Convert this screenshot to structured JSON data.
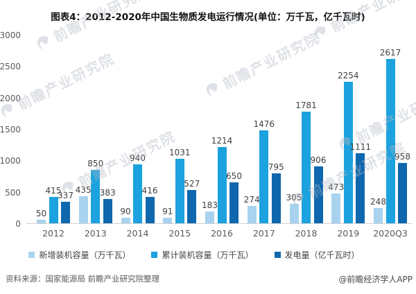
{
  "title": "图表4：2012-2020年中国生物质发电运行情况(单位：万千瓦，亿千瓦时)",
  "chart_data": {
    "type": "bar",
    "categories": [
      "2012",
      "2013",
      "2014",
      "2015",
      "2016",
      "2017",
      "2018",
      "2019",
      "2020Q3"
    ],
    "series": [
      {
        "name": "新增装机容量（万千瓦）",
        "color": "#A9D2EF",
        "values": [
          50,
          435,
          90,
          91,
          183,
          274,
          305,
          473,
          248
        ]
      },
      {
        "name": "累计装机容量（万千瓦）",
        "color": "#1CA2DE",
        "values": [
          415,
          850,
          940,
          1031,
          1214,
          1476,
          1781,
          2254,
          2617
        ]
      },
      {
        "name": "发电量（亿千瓦时）",
        "color": "#0F67AE",
        "values": [
          337,
          383,
          416,
          527,
          650,
          795,
          906,
          1111,
          958
        ]
      }
    ],
    "ylim": [
      0,
      3000
    ],
    "y_ticks": [
      0,
      500,
      1000,
      1500,
      2000,
      2500,
      3000
    ],
    "grid": false,
    "legend_position": "bottom",
    "data_labels": true
  },
  "watermark": {
    "text": "前瞻产业研究院"
  },
  "footer": {
    "source": "资料来源：国家能源局 前瞻产业研究院整理",
    "credit": "@前瞻经济学人APP"
  }
}
